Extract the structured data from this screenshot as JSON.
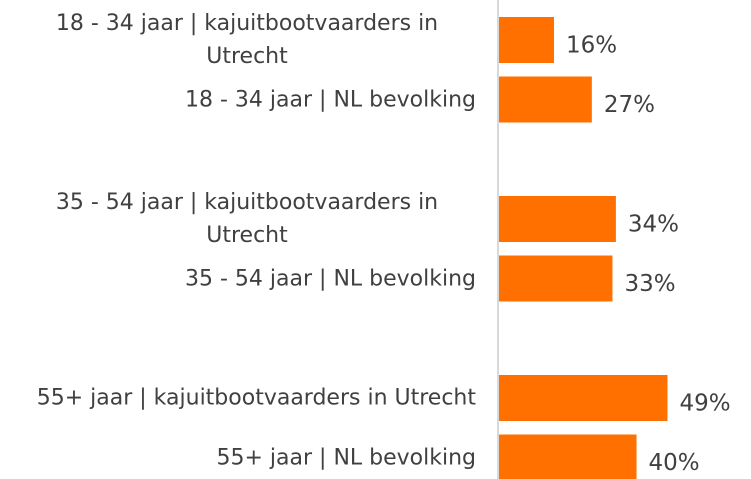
{
  "chart_data": {
    "type": "bar",
    "orientation": "horizontal",
    "categories": [
      "18 - 34 jaar | kajuitbootvaarders in Utrecht",
      "18 - 34 jaar | NL bevolking",
      "35 - 54 jaar | kajuitbootvaarders in Utrecht",
      "35 - 54 jaar | NL bevolking",
      "55+ jaar | kajuitbootvaarders in Utrecht",
      "55+ jaar | NL bevolking"
    ],
    "values": [
      16,
      27,
      34,
      33,
      49,
      40
    ],
    "value_labels": [
      "16%",
      "27%",
      "34%",
      "33%",
      "49%",
      "40%"
    ],
    "color": "#ff7000",
    "xlim": [
      0,
      73
    ]
  }
}
